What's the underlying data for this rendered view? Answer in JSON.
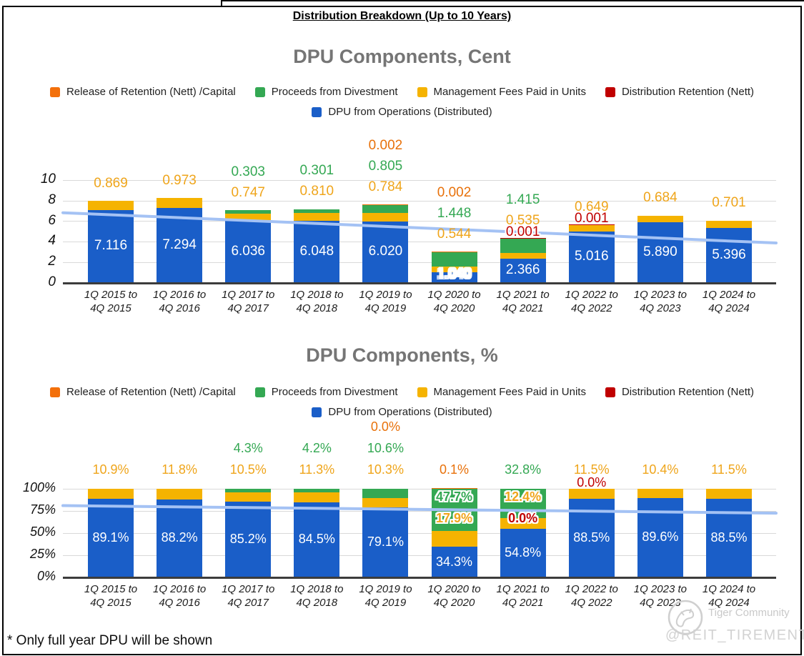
{
  "page": {
    "title": "Distribution Breakdown (Up to 10 Years)",
    "footnote": "* Only full year DPU will be shown",
    "watermark": {
      "brand": "Tiger Community",
      "handle": "@REIT_TIREMENT"
    }
  },
  "colors": {
    "ops": "#1A5EC8",
    "mgmt": "#F5B301",
    "divest": "#34A853",
    "release": "#F3700B",
    "retention": "#C00000",
    "ops_label": "#FFFFFF",
    "mgmt_label": "#EFA51B",
    "divest_label": "#34A853",
    "release_label": "#E8710A",
    "retention_label": "#C00000",
    "trend": "#A4C2F4",
    "grid": "#D9D9D9",
    "axis": "#3C3C3C",
    "chart_title": "#757575"
  },
  "legend": {
    "row1": [
      {
        "key": "release",
        "label": "Release of Retention (Nett) /Capital"
      },
      {
        "key": "divest",
        "label": "Proceeds from Divestment"
      },
      {
        "key": "mgmt",
        "label": "Management Fees Paid in Units"
      },
      {
        "key": "retention",
        "label": "Distribution Retention (Nett)"
      }
    ],
    "row2": [
      {
        "key": "ops",
        "label": "DPU from Operations (Distributed)"
      }
    ]
  },
  "chart_data": [
    {
      "type": "bar",
      "stacked": true,
      "title": "DPU Components, Cent",
      "ylim": [
        0,
        10
      ],
      "yticks": {
        "values": [
          0,
          2,
          4,
          6,
          8,
          10
        ],
        "labels": [
          "0",
          "2",
          "4",
          "6",
          "8",
          "10"
        ]
      },
      "grid": true,
      "legend_position": "top",
      "categories": [
        [
          "1Q 2015 to",
          "4Q 2015"
        ],
        [
          "1Q 2016 to",
          "4Q 2016"
        ],
        [
          "1Q 2017 to",
          "4Q 2017"
        ],
        [
          "1Q 2018 to",
          "4Q 2018"
        ],
        [
          "1Q 2019 to",
          "4Q 2019"
        ],
        [
          "1Q 2020 to",
          "4Q 2020"
        ],
        [
          "1Q 2021 to",
          "4Q 2021"
        ],
        [
          "1Q 2022 to",
          "4Q 2022"
        ],
        [
          "1Q 2023 to",
          "4Q 2023"
        ],
        [
          "1Q 2024 to",
          "4Q 2024"
        ]
      ],
      "series": [
        {
          "key": "ops",
          "name": "DPU from Operations (Distributed)",
          "values": [
            7.116,
            7.294,
            6.036,
            6.048,
            6.02,
            1.04,
            2.366,
            5.016,
            5.89,
            5.396
          ]
        },
        {
          "key": "mgmt",
          "name": "Management Fees Paid in Units",
          "values": [
            0.869,
            0.973,
            0.747,
            0.81,
            0.784,
            0.544,
            0.535,
            0.649,
            0.684,
            0.701
          ]
        },
        {
          "key": "divest",
          "name": "Proceeds from Divestment",
          "values": [
            0,
            0,
            0.303,
            0.301,
            0.805,
            1.448,
            1.415,
            0,
            0,
            0
          ]
        },
        {
          "key": "release",
          "name": "Release of Retention (Nett) /Capital",
          "values": [
            0,
            0,
            0,
            0,
            0.002,
            0.002,
            0,
            0,
            0,
            0
          ]
        },
        {
          "key": "retention",
          "name": "Distribution Retention (Nett)",
          "values": [
            0,
            0,
            0,
            0,
            0,
            0,
            0.001,
            0.001,
            0,
            0
          ]
        }
      ],
      "trendline": {
        "start": 6.85,
        "end": 3.9
      },
      "bar_labels": [
        {
          "above": [
            [
              "0.869",
              "mgmt"
            ]
          ],
          "inside": [
            [
              "7.116",
              "ops"
            ]
          ]
        },
        {
          "above": [
            [
              "0.973",
              "mgmt"
            ]
          ],
          "inside": [
            [
              "7.294",
              "ops"
            ]
          ]
        },
        {
          "above": [
            [
              "0.303",
              "divest"
            ],
            [
              "0.747",
              "mgmt"
            ]
          ],
          "inside": [
            [
              "6.036",
              "ops"
            ]
          ]
        },
        {
          "above": [
            [
              "0.301",
              "divest"
            ],
            [
              "0.810",
              "mgmt"
            ]
          ],
          "inside": [
            [
              "6.048",
              "ops"
            ]
          ]
        },
        {
          "above": [
            [
              "0.002",
              "release"
            ],
            [
              "0.805",
              "divest"
            ],
            [
              "0.784",
              "mgmt"
            ]
          ],
          "inside": [
            [
              "6.020",
              "ops"
            ]
          ]
        },
        {
          "above": [
            [
              "0.002",
              "release"
            ],
            [
              "1.448",
              "divest"
            ],
            [
              "0.544",
              "mgmt"
            ]
          ],
          "inside": [
            [
              "1.040",
              "ops-outline"
            ]
          ]
        },
        {
          "above": [
            [
              "1.415",
              "divest"
            ],
            [
              "0.535",
              "mgmt"
            ],
            [
              "0.001",
              "retention-edge-outline"
            ]
          ],
          "inside": [
            [
              "2.366",
              "ops"
            ]
          ]
        },
        {
          "above": [
            [
              "0.649",
              "mgmt"
            ],
            [
              "0.001",
              "retention-edge"
            ]
          ],
          "inside": [
            [
              "5.016",
              "ops"
            ]
          ]
        },
        {
          "above": [
            [
              "0.684",
              "mgmt"
            ]
          ],
          "inside": [
            [
              "5.890",
              "ops"
            ]
          ]
        },
        {
          "above": [
            [
              "0.701",
              "mgmt"
            ]
          ],
          "inside": [
            [
              "5.396",
              "ops"
            ]
          ]
        }
      ]
    },
    {
      "type": "bar",
      "stacked": true,
      "title": "DPU Components, %",
      "ylim": [
        0,
        100
      ],
      "yticks": {
        "values": [
          0,
          25,
          50,
          75,
          100
        ],
        "labels": [
          "0%",
          "25%",
          "50%",
          "75%",
          "100%"
        ]
      },
      "grid": true,
      "legend_position": "top",
      "categories": [
        [
          "1Q 2015 to",
          "4Q 2015"
        ],
        [
          "1Q 2016 to",
          "4Q 2016"
        ],
        [
          "1Q 2017 to",
          "4Q 2017"
        ],
        [
          "1Q 2018 to",
          "4Q 2018"
        ],
        [
          "1Q 2019 to",
          "4Q 2019"
        ],
        [
          "1Q 2020 to",
          "4Q 2020"
        ],
        [
          "1Q 2021 to",
          "4Q 2021"
        ],
        [
          "1Q 2022 to",
          "4Q 2022"
        ],
        [
          "1Q 2023 to",
          "4Q 2023"
        ],
        [
          "1Q 2024 to",
          "4Q 2024"
        ]
      ],
      "series": [
        {
          "key": "ops",
          "name": "DPU from Operations (Distributed)",
          "values": [
            89.1,
            88.2,
            85.2,
            84.5,
            79.1,
            34.3,
            54.8,
            88.5,
            89.6,
            88.5
          ]
        },
        {
          "key": "mgmt",
          "name": "Management Fees Paid in Units",
          "values": [
            10.9,
            11.8,
            10.5,
            11.3,
            10.3,
            17.9,
            12.4,
            11.5,
            10.4,
            11.5
          ]
        },
        {
          "key": "divest",
          "name": "Proceeds from Divestment",
          "values": [
            0,
            0,
            4.3,
            4.2,
            10.6,
            47.7,
            32.8,
            0,
            0,
            0
          ]
        },
        {
          "key": "release",
          "name": "Release of Retention (Nett) /Capital",
          "values": [
            0,
            0,
            0,
            0,
            0,
            0.1,
            0,
            0,
            0,
            0
          ]
        },
        {
          "key": "retention",
          "name": "Distribution Retention (Nett)",
          "values": [
            0,
            0,
            0,
            0,
            0,
            0,
            0,
            0,
            0,
            0
          ]
        }
      ],
      "trendline": {
        "start": 81,
        "end": 72.5
      },
      "bar_labels": [
        {
          "above": [
            [
              "10.9%",
              "mgmt"
            ]
          ],
          "inside": [
            [
              "89.1%",
              "ops"
            ]
          ]
        },
        {
          "above": [
            [
              "11.8%",
              "mgmt"
            ]
          ],
          "inside": [
            [
              "88.2%",
              "ops"
            ]
          ]
        },
        {
          "above": [
            [
              "4.3%",
              "divest"
            ],
            [
              "10.5%",
              "mgmt"
            ]
          ],
          "inside": [
            [
              "85.2%",
              "ops"
            ]
          ]
        },
        {
          "above": [
            [
              "4.2%",
              "divest"
            ],
            [
              "11.3%",
              "mgmt"
            ]
          ],
          "inside": [
            [
              "84.5%",
              "ops"
            ]
          ]
        },
        {
          "above": [
            [
              "0.0%",
              "release"
            ],
            [
              "10.6%",
              "divest"
            ],
            [
              "10.3%",
              "mgmt"
            ]
          ],
          "inside": [
            [
              "79.1%",
              "ops"
            ]
          ]
        },
        {
          "above": [
            [
              "0.1%",
              "release"
            ]
          ],
          "inside": [
            [
              "47.7%",
              "divest-outline"
            ],
            [
              "17.9%",
              "mgmt-outline"
            ],
            [
              "34.3%",
              "ops"
            ]
          ]
        },
        {
          "above": [
            [
              "32.8%",
              "divest"
            ]
          ],
          "inside": [
            [
              "12.4%",
              "mgmt-outline"
            ],
            [
              "0.0%",
              "retention-outline"
            ],
            [
              "54.8%",
              "ops"
            ]
          ]
        },
        {
          "above": [
            [
              "11.5%",
              "mgmt"
            ],
            [
              "0.0%",
              "retention-edge"
            ]
          ],
          "inside": [
            [
              "88.5%",
              "ops"
            ]
          ]
        },
        {
          "above": [
            [
              "10.4%",
              "mgmt"
            ]
          ],
          "inside": [
            [
              "89.6%",
              "ops"
            ]
          ]
        },
        {
          "above": [
            [
              "11.5%",
              "mgmt"
            ]
          ],
          "inside": [
            [
              "88.5%",
              "ops"
            ]
          ]
        }
      ]
    }
  ]
}
